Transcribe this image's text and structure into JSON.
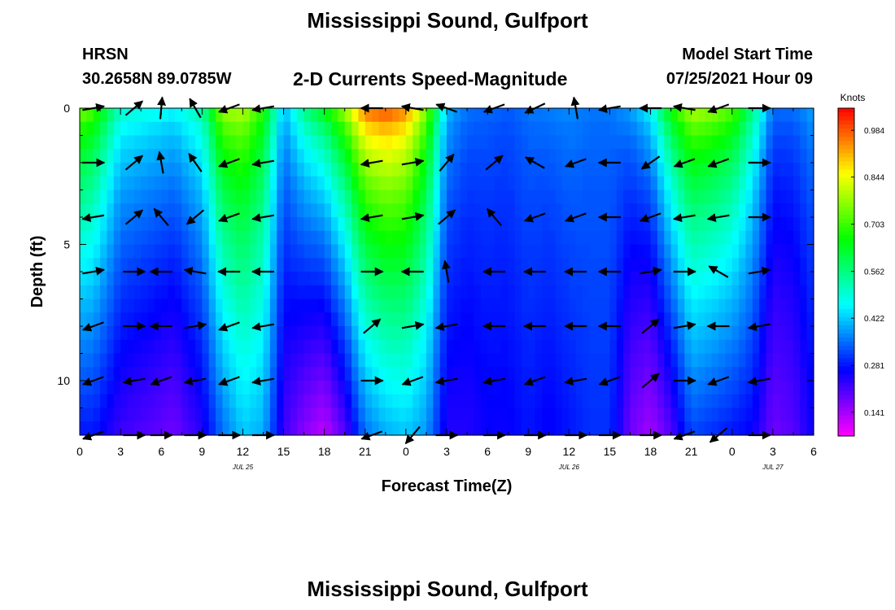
{
  "header": {
    "title": "Mississippi Sound, Gulfport",
    "station": "HRSN",
    "coordinates": "30.2658N  89.0785W",
    "product": "2-D Currents Speed-Magnitude",
    "model_start_label": "Model Start Time",
    "model_start_time": "07/25/2021 Hour 09"
  },
  "footer": {
    "title": "Mississippi Sound, Gulfport"
  },
  "chart_data": {
    "type": "heatmap",
    "title": "2-D Currents Speed-Magnitude",
    "xlabel": "Forecast Time(Z)",
    "ylabel": "Depth (ft)",
    "colorbar_label": "Knots",
    "x_range_hours": [
      0,
      54
    ],
    "y_range_ft": [
      0,
      12
    ],
    "x_ticks": [
      {
        "h": 0,
        "label": "0"
      },
      {
        "h": 3,
        "label": "3"
      },
      {
        "h": 6,
        "label": "6"
      },
      {
        "h": 9,
        "label": "9"
      },
      {
        "h": 12,
        "label": "12"
      },
      {
        "h": 15,
        "label": "15"
      },
      {
        "h": 18,
        "label": "18"
      },
      {
        "h": 21,
        "label": "21"
      },
      {
        "h": 24,
        "label": "0"
      },
      {
        "h": 27,
        "label": "3"
      },
      {
        "h": 30,
        "label": "6"
      },
      {
        "h": 33,
        "label": "9"
      },
      {
        "h": 36,
        "label": "12"
      },
      {
        "h": 39,
        "label": "15"
      },
      {
        "h": 42,
        "label": "18"
      },
      {
        "h": 45,
        "label": "21"
      },
      {
        "h": 48,
        "label": "0"
      },
      {
        "h": 51,
        "label": "3"
      },
      {
        "h": 54,
        "label": "6"
      }
    ],
    "date_labels": [
      {
        "h": 12,
        "label": "JUL 25"
      },
      {
        "h": 36,
        "label": "JUL 26"
      },
      {
        "h": 51,
        "label": "JUL 27"
      }
    ],
    "y_ticks": [
      {
        "ft": 0,
        "label": "0"
      },
      {
        "ft": 5,
        "label": "5"
      },
      {
        "ft": 10,
        "label": "10"
      }
    ],
    "colorbar_ticks": [
      "0.984",
      "0.844",
      "0.703",
      "0.562",
      "0.422",
      "0.281",
      "0.141"
    ],
    "colorbar_range": [
      0.07,
      1.05
    ],
    "speed_profile_times_h": [
      0,
      1,
      3,
      5,
      7,
      9,
      10.5,
      12,
      13.5,
      15,
      16.5,
      18,
      19.5,
      21,
      22.5,
      24,
      25.5,
      27,
      28.5,
      30,
      31.5,
      33,
      34.5,
      36,
      37.5,
      39,
      40.5,
      42,
      43.5,
      45,
      46.5,
      48,
      49.5,
      51,
      52.5,
      54
    ],
    "speed_profile_surface": [
      0.78,
      0.74,
      0.52,
      0.5,
      0.48,
      0.55,
      0.8,
      0.82,
      0.7,
      0.42,
      0.58,
      0.68,
      0.82,
      1.0,
      1.03,
      0.98,
      0.78,
      0.42,
      0.36,
      0.35,
      0.34,
      0.36,
      0.37,
      0.38,
      0.36,
      0.36,
      0.4,
      0.48,
      0.7,
      0.82,
      0.8,
      0.75,
      0.58,
      0.36,
      0.36,
      0.4
    ],
    "speed_profile_bottom": [
      0.28,
      0.28,
      0.22,
      0.2,
      0.18,
      0.24,
      0.35,
      0.42,
      0.4,
      0.22,
      0.16,
      0.12,
      0.2,
      0.35,
      0.4,
      0.42,
      0.38,
      0.24,
      0.24,
      0.26,
      0.26,
      0.28,
      0.26,
      0.28,
      0.3,
      0.3,
      0.18,
      0.14,
      0.2,
      0.32,
      0.3,
      0.28,
      0.26,
      0.18,
      0.2,
      0.26
    ],
    "vector_times_h": [
      1,
      4,
      6,
      8.5,
      11,
      13.5,
      21.5,
      24.5,
      27,
      30.5,
      33.5,
      36.5,
      39,
      42,
      44.5,
      47,
      50
    ],
    "vector_depths_ft": [
      0,
      2,
      4,
      6,
      8,
      10,
      12
    ],
    "vector_directions_deg": [
      [
        10,
        40,
        85,
        120,
        200,
        190,
        180,
        170,
        160,
        200,
        205,
        100,
        190,
        180,
        170,
        200,
        0
      ],
      [
        0,
        40,
        100,
        125,
        200,
        190,
        190,
        10,
        50,
        40,
        150,
        200,
        180,
        215,
        200,
        200,
        0
      ],
      [
        190,
        40,
        130,
        220,
        200,
        190,
        190,
        10,
        40,
        130,
        200,
        200,
        180,
        200,
        190,
        190,
        0
      ],
      [
        10,
        0,
        180,
        170,
        180,
        180,
        0,
        180,
        100,
        180,
        180,
        180,
        180,
        10,
        0,
        150,
        10
      ],
      [
        200,
        0,
        180,
        10,
        200,
        190,
        40,
        10,
        190,
        180,
        180,
        180,
        180,
        40,
        10,
        180,
        190
      ],
      [
        200,
        190,
        200,
        190,
        200,
        190,
        0,
        200,
        190,
        190,
        200,
        190,
        200,
        40,
        0,
        200,
        190
      ],
      [
        200,
        0,
        0,
        0,
        0,
        0,
        200,
        230,
        0,
        0,
        0,
        0,
        0,
        0,
        200,
        220,
        0
      ]
    ]
  }
}
